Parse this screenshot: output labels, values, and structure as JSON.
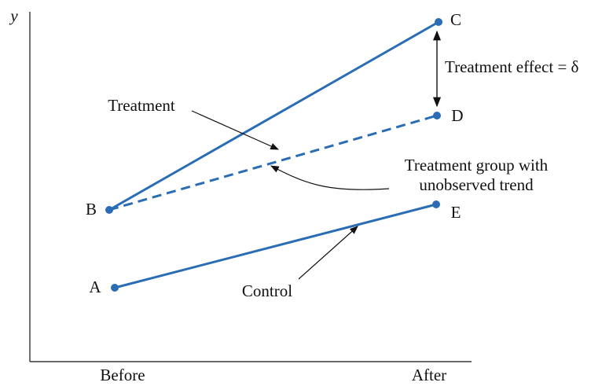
{
  "axis": {
    "y_label": "y",
    "x_labels": [
      "Before",
      "After"
    ]
  },
  "points": [
    {
      "label": "A"
    },
    {
      "label": "B"
    },
    {
      "label": "C"
    },
    {
      "label": "D"
    },
    {
      "label": "E"
    }
  ],
  "annotations": {
    "treatment": "Treatment",
    "control": "Control",
    "trend": [
      "Treatment group with",
      "unobserved trend"
    ],
    "effect": "Treatment effect = δ"
  }
}
